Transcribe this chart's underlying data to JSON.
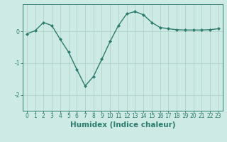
{
  "x": [
    0,
    1,
    2,
    3,
    4,
    5,
    6,
    7,
    8,
    9,
    10,
    11,
    12,
    13,
    14,
    15,
    16,
    17,
    18,
    19,
    20,
    21,
    22,
    23
  ],
  "y": [
    -0.08,
    0.02,
    0.28,
    0.18,
    -0.25,
    -0.65,
    -1.2,
    -1.72,
    -1.42,
    -0.88,
    -0.32,
    0.18,
    0.55,
    0.62,
    0.52,
    0.28,
    0.12,
    0.08,
    0.05,
    0.04,
    0.04,
    0.04,
    0.05,
    0.08
  ],
  "line_color": "#2d7d6e",
  "marker": "D",
  "marker_size": 2.0,
  "bg_color": "#ceeae4",
  "grid_color": "#aed4cc",
  "xlabel": "Humidex (Indice chaleur)",
  "xlim": [
    -0.5,
    23.5
  ],
  "ylim": [
    -2.5,
    0.85
  ],
  "yticks": [
    0,
    -1,
    -2
  ],
  "xticks": [
    0,
    1,
    2,
    3,
    4,
    5,
    6,
    7,
    8,
    9,
    10,
    11,
    12,
    13,
    14,
    15,
    16,
    17,
    18,
    19,
    20,
    21,
    22,
    23
  ],
  "tick_fontsize": 5.5,
  "xlabel_fontsize": 7.5
}
